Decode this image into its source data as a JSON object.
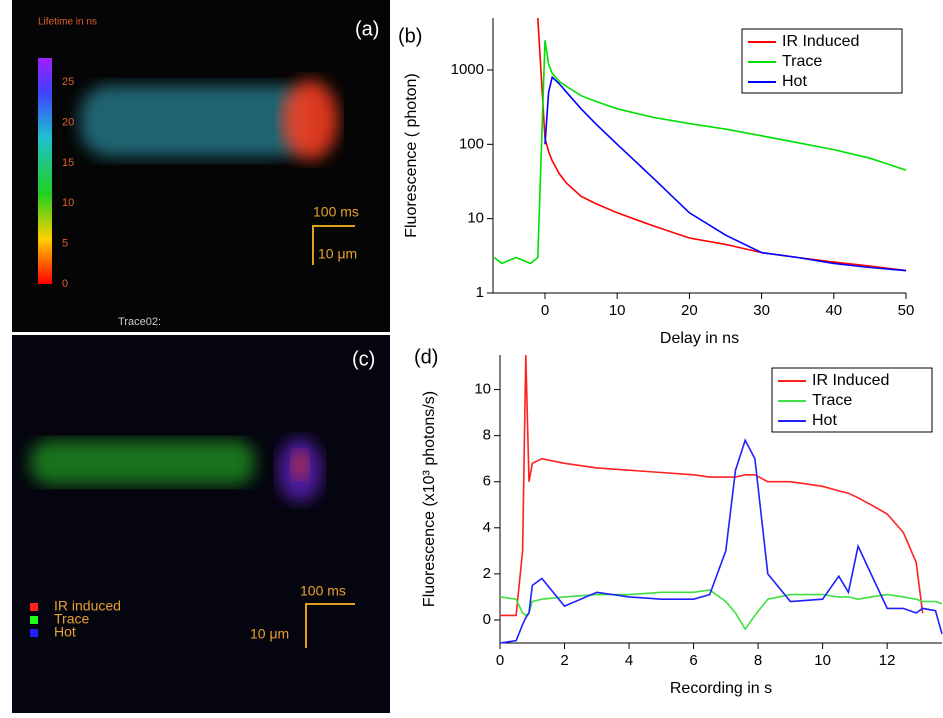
{
  "panels": [
    {
      "label": "(a)",
      "colorbar_title": "Lifetime in ns",
      "colorbar_ticks": [
        "0",
        "5",
        "10",
        "15",
        "20",
        "25"
      ],
      "time_scale": "100 ms",
      "length_scale": "10 μm",
      "caption": "Trace02:"
    },
    {
      "label": "(c)",
      "legend": [
        {
          "name": "IR induced",
          "color": "#ff2020"
        },
        {
          "name": "Trace",
          "color": "#20ff20"
        },
        {
          "name": "Hot",
          "color": "#2020ff"
        }
      ],
      "time_scale": "100 ms",
      "length_scale": "10 μm"
    }
  ],
  "chart_data": [
    {
      "type": "line",
      "panel_label": "(b)",
      "x_label": "Delay in ns",
      "y_label": "Fluorescence ( photon)",
      "log_y": true,
      "x": [
        -7,
        -6,
        -4,
        -2,
        -1,
        0,
        0.5,
        1,
        2,
        3,
        5,
        7,
        10,
        15,
        20,
        25,
        30,
        35,
        40,
        45,
        50
      ],
      "series": [
        {
          "name": "IR Induced",
          "color": "#ff0000",
          "values": [
            null,
            null,
            null,
            null,
            5000,
            120,
            80,
            60,
            40,
            30,
            20,
            16,
            12,
            8,
            5.5,
            4.5,
            3.5,
            3,
            2.6,
            2.3,
            2
          ]
        },
        {
          "name": "Trace",
          "color": "#00e000",
          "values": [
            3,
            2.5,
            3,
            2.5,
            3,
            2500,
            1200,
            900,
            700,
            600,
            450,
            380,
            300,
            230,
            190,
            160,
            130,
            105,
            85,
            65,
            45
          ]
        },
        {
          "name": "Hot",
          "color": "#0000ff",
          "values": [
            null,
            null,
            null,
            null,
            null,
            100,
            500,
            800,
            650,
            500,
            300,
            190,
            100,
            35,
            12,
            6,
            3.5,
            3,
            2.5,
            2.2,
            2
          ]
        }
      ],
      "xlim": [
        -7.2,
        50
      ],
      "xticks": [
        0,
        10,
        20,
        30,
        40,
        50
      ],
      "ylim": [
        1,
        5000
      ],
      "yticks": [
        1,
        10,
        100,
        1000
      ]
    },
    {
      "type": "line",
      "panel_label": "(d)",
      "x_label": "Recording in s",
      "y_label": "Fluorescence (x10³ photons/s)",
      "x": [
        0,
        0.5,
        0.7,
        0.8,
        0.9,
        1,
        1.3,
        2,
        3,
        4,
        5,
        6,
        6.5,
        7,
        7.3,
        7.6,
        7.9,
        8.3,
        9,
        10,
        10.5,
        10.8,
        11.1,
        11.5,
        12,
        12.5,
        12.9,
        13.1,
        13.5,
        13.7
      ],
      "series": [
        {
          "name": "IR Induced",
          "color": "#ff2020",
          "values": [
            0.2,
            0.2,
            3,
            11.5,
            6,
            6.8,
            7,
            6.8,
            6.6,
            6.5,
            6.4,
            6.3,
            6.2,
            6.2,
            6.2,
            6.3,
            6.3,
            6,
            6,
            5.8,
            5.6,
            5.5,
            5.3,
            5,
            4.6,
            3.8,
            2.5,
            0.3,
            null,
            null
          ]
        },
        {
          "name": "Trace",
          "color": "#40e040",
          "values": [
            1,
            0.9,
            0.3,
            0.2,
            0.3,
            0.8,
            0.9,
            1,
            1.1,
            1.1,
            1.2,
            1.2,
            1.3,
            0.8,
            0.3,
            -0.4,
            0.2,
            0.9,
            1.1,
            1.1,
            1,
            1,
            0.9,
            1,
            1.1,
            1,
            0.9,
            0.8,
            0.8,
            0.7
          ]
        },
        {
          "name": "Hot",
          "color": "#2020ff",
          "values": [
            -1,
            -0.9,
            -0.2,
            0.1,
            0.3,
            1.5,
            1.8,
            0.6,
            1.2,
            1,
            0.9,
            0.9,
            1.1,
            3,
            6.5,
            7.8,
            7,
            2,
            0.8,
            0.9,
            1.9,
            1.2,
            3.2,
            2,
            0.5,
            0.5,
            0.3,
            0.5,
            0.4,
            -0.6
          ]
        }
      ],
      "xlim": [
        0,
        13.7
      ],
      "xticks": [
        0,
        2,
        4,
        6,
        8,
        10,
        12
      ],
      "ylim": [
        -1,
        11.5
      ],
      "yticks": [
        0,
        2,
        4,
        6,
        8,
        10
      ]
    }
  ]
}
